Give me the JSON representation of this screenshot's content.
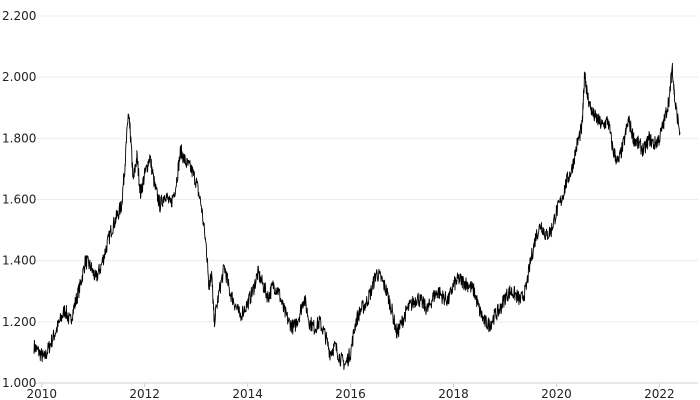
{
  "chart_data": {
    "type": "line",
    "title": "",
    "xlabel": "",
    "ylabel": "",
    "xlim": [
      2009.85,
      2022.75
    ],
    "ylim": [
      1.0,
      2.2
    ],
    "y_ticks": [
      1.0,
      1.2,
      1.4,
      1.6,
      1.8,
      2.0,
      2.2
    ],
    "y_tick_labels": [
      "1.000",
      "1.200",
      "1.400",
      "1.600",
      "1.800",
      "2.000",
      "2.200"
    ],
    "x_ticks": [
      2010,
      2012,
      2014,
      2016,
      2018,
      2020,
      2022
    ],
    "x_tick_labels": [
      "2010",
      "2012",
      "2014",
      "2016",
      "2018",
      "2020",
      "2022"
    ],
    "grid": "horizontal",
    "legend": "none",
    "series": [
      {
        "color": "#000000",
        "points": [
          [
            2009.85,
            1.12
          ],
          [
            2009.95,
            1.1
          ],
          [
            2010.05,
            1.08
          ],
          [
            2010.15,
            1.12
          ],
          [
            2010.25,
            1.16
          ],
          [
            2010.35,
            1.2
          ],
          [
            2010.45,
            1.24
          ],
          [
            2010.55,
            1.2
          ],
          [
            2010.65,
            1.26
          ],
          [
            2010.75,
            1.32
          ],
          [
            2010.85,
            1.4
          ],
          [
            2010.95,
            1.38
          ],
          [
            2011.05,
            1.34
          ],
          [
            2011.15,
            1.38
          ],
          [
            2011.25,
            1.44
          ],
          [
            2011.35,
            1.5
          ],
          [
            2011.45,
            1.54
          ],
          [
            2011.55,
            1.58
          ],
          [
            2011.62,
            1.72
          ],
          [
            2011.68,
            1.88
          ],
          [
            2011.72,
            1.82
          ],
          [
            2011.78,
            1.66
          ],
          [
            2011.85,
            1.74
          ],
          [
            2011.92,
            1.62
          ],
          [
            2012.0,
            1.68
          ],
          [
            2012.1,
            1.74
          ],
          [
            2012.2,
            1.64
          ],
          [
            2012.3,
            1.58
          ],
          [
            2012.4,
            1.62
          ],
          [
            2012.5,
            1.58
          ],
          [
            2012.6,
            1.64
          ],
          [
            2012.7,
            1.76
          ],
          [
            2012.8,
            1.72
          ],
          [
            2012.9,
            1.7
          ],
          [
            2013.0,
            1.66
          ],
          [
            2013.1,
            1.58
          ],
          [
            2013.2,
            1.44
          ],
          [
            2013.25,
            1.32
          ],
          [
            2013.3,
            1.36
          ],
          [
            2013.35,
            1.2
          ],
          [
            2013.45,
            1.3
          ],
          [
            2013.55,
            1.38
          ],
          [
            2013.65,
            1.3
          ],
          [
            2013.75,
            1.26
          ],
          [
            2013.85,
            1.22
          ],
          [
            2014.0,
            1.26
          ],
          [
            2014.1,
            1.3
          ],
          [
            2014.2,
            1.36
          ],
          [
            2014.3,
            1.32
          ],
          [
            2014.4,
            1.28
          ],
          [
            2014.5,
            1.32
          ],
          [
            2014.6,
            1.3
          ],
          [
            2014.7,
            1.24
          ],
          [
            2014.8,
            1.2
          ],
          [
            2014.9,
            1.18
          ],
          [
            2015.0,
            1.22
          ],
          [
            2015.1,
            1.28
          ],
          [
            2015.2,
            1.2
          ],
          [
            2015.3,
            1.18
          ],
          [
            2015.4,
            1.2
          ],
          [
            2015.5,
            1.16
          ],
          [
            2015.6,
            1.1
          ],
          [
            2015.7,
            1.12
          ],
          [
            2015.8,
            1.08
          ],
          [
            2015.9,
            1.06
          ],
          [
            2016.0,
            1.1
          ],
          [
            2016.1,
            1.2
          ],
          [
            2016.2,
            1.24
          ],
          [
            2016.3,
            1.26
          ],
          [
            2016.4,
            1.3
          ],
          [
            2016.5,
            1.36
          ],
          [
            2016.6,
            1.34
          ],
          [
            2016.7,
            1.3
          ],
          [
            2016.8,
            1.24
          ],
          [
            2016.9,
            1.16
          ],
          [
            2017.0,
            1.2
          ],
          [
            2017.1,
            1.24
          ],
          [
            2017.2,
            1.26
          ],
          [
            2017.3,
            1.28
          ],
          [
            2017.4,
            1.26
          ],
          [
            2017.5,
            1.24
          ],
          [
            2017.6,
            1.28
          ],
          [
            2017.7,
            1.3
          ],
          [
            2017.8,
            1.28
          ],
          [
            2017.9,
            1.27
          ],
          [
            2018.0,
            1.32
          ],
          [
            2018.1,
            1.34
          ],
          [
            2018.2,
            1.33
          ],
          [
            2018.3,
            1.32
          ],
          [
            2018.4,
            1.3
          ],
          [
            2018.5,
            1.24
          ],
          [
            2018.6,
            1.2
          ],
          [
            2018.7,
            1.19
          ],
          [
            2018.8,
            1.22
          ],
          [
            2018.9,
            1.24
          ],
          [
            2019.0,
            1.28
          ],
          [
            2019.1,
            1.3
          ],
          [
            2019.2,
            1.29
          ],
          [
            2019.3,
            1.27
          ],
          [
            2019.4,
            1.3
          ],
          [
            2019.5,
            1.4
          ],
          [
            2019.6,
            1.48
          ],
          [
            2019.7,
            1.52
          ],
          [
            2019.8,
            1.48
          ],
          [
            2019.9,
            1.5
          ],
          [
            2020.0,
            1.56
          ],
          [
            2020.1,
            1.6
          ],
          [
            2020.2,
            1.66
          ],
          [
            2020.3,
            1.7
          ],
          [
            2020.4,
            1.78
          ],
          [
            2020.5,
            1.84
          ],
          [
            2020.55,
            2.02
          ],
          [
            2020.6,
            1.94
          ],
          [
            2020.7,
            1.88
          ],
          [
            2020.8,
            1.86
          ],
          [
            2020.9,
            1.84
          ],
          [
            2021.0,
            1.86
          ],
          [
            2021.1,
            1.76
          ],
          [
            2021.2,
            1.72
          ],
          [
            2021.3,
            1.78
          ],
          [
            2021.4,
            1.86
          ],
          [
            2021.5,
            1.8
          ],
          [
            2021.6,
            1.78
          ],
          [
            2021.7,
            1.76
          ],
          [
            2021.8,
            1.8
          ],
          [
            2021.9,
            1.78
          ],
          [
            2022.0,
            1.8
          ],
          [
            2022.1,
            1.86
          ],
          [
            2022.2,
            1.94
          ],
          [
            2022.25,
            2.04
          ],
          [
            2022.3,
            1.92
          ],
          [
            2022.4,
            1.82
          ]
        ]
      }
    ]
  }
}
